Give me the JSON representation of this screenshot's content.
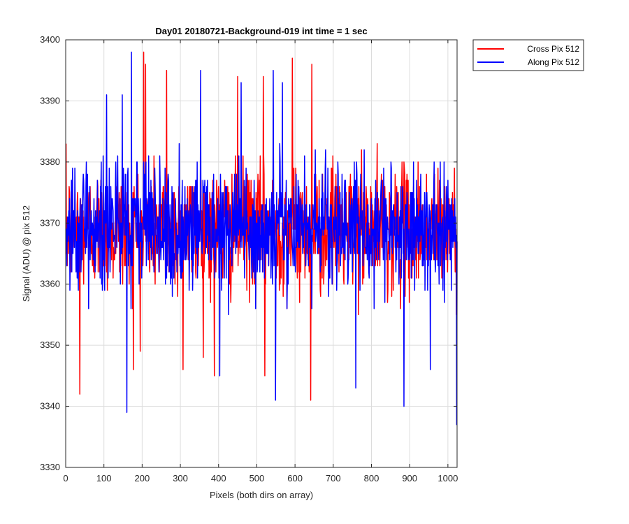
{
  "chart_data": {
    "type": "line",
    "title": "Day01 20180721-Background-019 int time = 1 sec",
    "xlabel": "Pixels (both dirs on array)",
    "ylabel": "Signal (ADU) @ pix 512",
    "xlim": [
      0,
      1024
    ],
    "ylim": [
      3330,
      3400
    ],
    "x_ticks": [
      0,
      100,
      200,
      300,
      400,
      500,
      600,
      700,
      800,
      900,
      1000
    ],
    "y_ticks": [
      3330,
      3340,
      3350,
      3360,
      3370,
      3380,
      3390,
      3400
    ],
    "x_tick_labels": [
      "0",
      "100",
      "200",
      "300",
      "400",
      "500",
      "600",
      "700",
      "800",
      "900",
      "1000"
    ],
    "y_tick_labels": [
      "3330",
      "3340",
      "3350",
      "3360",
      "3370",
      "3380",
      "3390",
      "3400"
    ],
    "grid": true,
    "legend_position": "outside-top-right",
    "series": [
      {
        "name": "Cross Pix 512",
        "color": "#ff0000",
        "mean": 3369,
        "spread": 5,
        "min": 3341,
        "max": 3398,
        "peaks": [
          [
            203,
            3398
          ],
          [
            208,
            3396
          ],
          [
            263,
            3395
          ],
          [
            592,
            3397
          ],
          [
            643,
            3396
          ],
          [
            449,
            3394
          ],
          [
            516,
            3394
          ]
        ],
        "troughs": [
          [
            36,
            3342
          ],
          [
            640,
            3341
          ],
          [
            176,
            3346
          ],
          [
            306,
            3346
          ],
          [
            388,
            3345
          ],
          [
            520,
            3345
          ]
        ]
      },
      {
        "name": "Along Pix 512",
        "color": "#0000ff",
        "mean": 3369,
        "spread": 5,
        "min": 3337,
        "max": 3398,
        "peaks": [
          [
            171,
            3398
          ],
          [
            352,
            3395
          ],
          [
            542,
            3395
          ],
          [
            106,
            3391
          ],
          [
            147,
            3391
          ],
          [
            458,
            3393
          ],
          [
            566,
            3393
          ]
        ],
        "troughs": [
          [
            159,
            3339
          ],
          [
            884,
            3340
          ],
          [
            1022,
            3337
          ],
          [
            548,
            3341
          ],
          [
            402,
            3345
          ],
          [
            758,
            3343
          ],
          [
            953,
            3346
          ]
        ]
      }
    ]
  }
}
